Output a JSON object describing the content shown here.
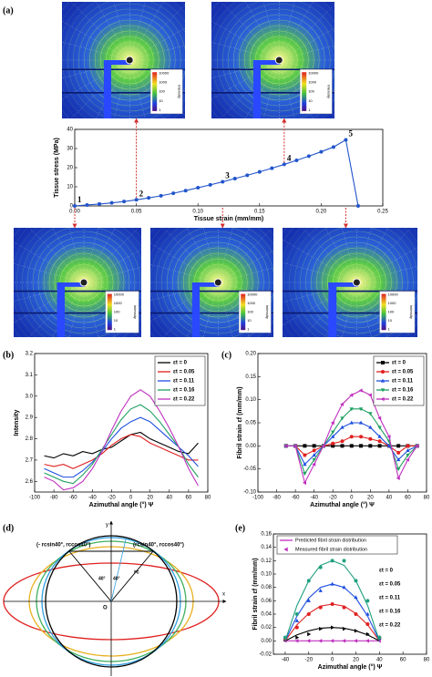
{
  "chart_data": [
    {
      "type": "line",
      "panel_label": "(a)",
      "xlabel": "Tissue strain (mm/mm)",
      "ylabel": "Tissue stress (MPa)",
      "x": [
        0,
        0.01,
        0.02,
        0.03,
        0.04,
        0.05,
        0.06,
        0.07,
        0.08,
        0.09,
        0.1,
        0.11,
        0.12,
        0.13,
        0.14,
        0.15,
        0.16,
        0.17,
        0.18,
        0.19,
        0.2,
        0.21,
        0.22,
        0.23
      ],
      "series": [
        {
          "color": "#2255cc",
          "marker": "circle",
          "values": [
            0,
            0.5,
            1,
            1.6,
            2.3,
            3.2,
            4.2,
            5.3,
            6.6,
            8,
            9.5,
            11,
            12.6,
            14.3,
            16,
            17.8,
            19.7,
            21.7,
            23.8,
            26,
            28.3,
            30.8,
            34.5,
            0
          ]
        }
      ],
      "xlim": [
        0,
        0.25
      ],
      "xticks": [
        {
          "value": 0,
          "label": "0.00"
        },
        {
          "value": 0.05,
          "label": "0.05"
        },
        {
          "value": 0.1,
          "label": "0.10"
        },
        {
          "value": 0.15,
          "label": "0.15"
        },
        {
          "value": 0.2,
          "label": "0.20"
        },
        {
          "value": 0.25,
          "label": "0.25"
        }
      ],
      "ylim": [
        0,
        40
      ],
      "yticks": [
        0,
        10,
        20,
        30,
        40
      ],
      "annotations": [
        {
          "text": "1",
          "x": 0,
          "color": "#1a237e"
        },
        {
          "text": "2",
          "x": 0.05,
          "color": "#d32f2f"
        },
        {
          "text": "3",
          "x": 0.12,
          "color": "#1e5fd6"
        },
        {
          "text": "4",
          "x": 0.17,
          "color": "#2e9e5a"
        },
        {
          "text": "5",
          "x": 0.22,
          "color": "#c238c2"
        }
      ]
    },
    {
      "type": "line",
      "panel_label": "(b)",
      "xlabel": "Azimuthal angle (°) Ψ",
      "ylabel": "Intensity",
      "x": [
        -90,
        -80,
        -70,
        -60,
        -50,
        -40,
        -30,
        -20,
        -10,
        0,
        10,
        20,
        30,
        40,
        50,
        60,
        70
      ],
      "series": [
        {
          "name": "εt = 0",
          "color": "#000000",
          "values": [
            2.72,
            2.71,
            2.73,
            2.72,
            2.74,
            2.73,
            2.75,
            2.76,
            2.79,
            2.82,
            2.83,
            2.8,
            2.78,
            2.76,
            2.74,
            2.73,
            2.78
          ]
        },
        {
          "name": "εt = 0.05",
          "color": "#e02020",
          "values": [
            2.68,
            2.67,
            2.68,
            2.66,
            2.68,
            2.7,
            2.73,
            2.77,
            2.8,
            2.82,
            2.81,
            2.78,
            2.76,
            2.74,
            2.72,
            2.7,
            2.7
          ]
        },
        {
          "name": "εt = 0.11",
          "color": "#1f4fe0",
          "values": [
            2.66,
            2.64,
            2.62,
            2.62,
            2.65,
            2.69,
            2.74,
            2.8,
            2.85,
            2.88,
            2.9,
            2.88,
            2.84,
            2.8,
            2.76,
            2.72,
            2.67
          ]
        },
        {
          "name": "εt = 0.16",
          "color": "#1fa060",
          "values": [
            2.64,
            2.62,
            2.6,
            2.59,
            2.63,
            2.68,
            2.75,
            2.82,
            2.89,
            2.94,
            2.96,
            2.93,
            2.88,
            2.82,
            2.76,
            2.68,
            2.62
          ]
        },
        {
          "name": "εt = 0.22",
          "color": "#c030c0",
          "values": [
            2.62,
            2.6,
            2.56,
            2.57,
            2.6,
            2.66,
            2.74,
            2.84,
            2.93,
            3,
            3.03,
            3,
            2.93,
            2.85,
            2.76,
            2.66,
            2.58
          ]
        }
      ],
      "xlim": [
        -100,
        80
      ],
      "xticks": [
        -100,
        -80,
        -60,
        -40,
        -20,
        0,
        20,
        40,
        60,
        80
      ],
      "ylim": [
        2.55,
        3.2
      ],
      "yticks": [
        2.6,
        2.7,
        2.8,
        2.9,
        {
          "value": 3,
          "label": "3.0"
        },
        3.1,
        3.2
      ]
    },
    {
      "type": "line",
      "panel_label": "(c)",
      "xlabel": "Azimuthal angle (°) Ψ",
      "ylabel": "Fibril strain εf (mm/mm)",
      "x": [
        -70,
        -60,
        -50,
        -40,
        -30,
        -20,
        -10,
        0,
        10,
        20,
        30,
        40,
        50,
        60,
        70
      ],
      "series": [
        {
          "name": "εt = 0",
          "color": "#000000",
          "marker": "square",
          "values": [
            0,
            0,
            0,
            0,
            0,
            0,
            0,
            0,
            0,
            0,
            0,
            0,
            0,
            0,
            0
          ]
        },
        {
          "name": "εt = 0.05",
          "color": "#e02020",
          "marker": "circle",
          "values": [
            0,
            0,
            -0.02,
            -0.01,
            0,
            0.005,
            0.01,
            0.02,
            0.02,
            0.015,
            0.01,
            0,
            -0.015,
            0,
            0
          ]
        },
        {
          "name": "εt = 0.11",
          "color": "#1f4fe0",
          "marker": "triangle-up",
          "values": [
            0,
            0,
            -0.04,
            -0.02,
            0,
            0.02,
            0.04,
            0.05,
            0.05,
            0.04,
            0.02,
            0,
            -0.03,
            -0.01,
            0
          ]
        },
        {
          "name": "εt = 0.16",
          "color": "#1fa060",
          "marker": "triangle-down",
          "values": [
            0,
            0,
            -0.06,
            -0.03,
            0,
            0.03,
            0.06,
            0.08,
            0.08,
            0.07,
            0.04,
            0.01,
            -0.05,
            -0.02,
            0
          ]
        },
        {
          "name": "εt = 0.22",
          "color": "#c030c0",
          "marker": "triangle-left",
          "values": [
            0,
            0,
            -0.08,
            -0.04,
            0,
            0.05,
            0.09,
            0.11,
            0.12,
            0.11,
            0.06,
            0.02,
            -0.07,
            -0.03,
            0
          ]
        }
      ],
      "xlim": [
        -100,
        80
      ],
      "xticks": [
        -100,
        -80,
        -60,
        -40,
        -20,
        0,
        20,
        40,
        60,
        80
      ],
      "ylim": [
        -0.1,
        0.2
      ],
      "yticks": [
        {
          "value": -0.1,
          "label": "-0.10"
        },
        {
          "value": -0.05,
          "label": "-0.05"
        },
        {
          "value": 0,
          "label": "0.00"
        },
        {
          "value": 0.05,
          "label": "0.05"
        },
        {
          "value": 0.1,
          "label": "0.10"
        },
        {
          "value": 0.15,
          "label": "0.15"
        },
        {
          "value": 0.2,
          "label": "0.20"
        }
      ]
    },
    {
      "type": "scatter",
      "panel_label": "(e)",
      "xlabel": "Azimuthal angle (°) Ψ",
      "ylabel": "Fibril strain εf (mm/mm)",
      "legend_entries": [
        {
          "label": "Predicted fibril strain distribution",
          "color": "#c030c0"
        },
        {
          "label": "Measured fibril strain distribution",
          "color": "#c030c0"
        }
      ],
      "x": [
        -40,
        -30,
        -20,
        -10,
        0,
        10,
        20,
        30,
        40
      ],
      "series": [
        {
          "name": "εt = 0",
          "color": "#c030c0",
          "marker": "triangle-left",
          "values": [
            0,
            0,
            0,
            0,
            0,
            0,
            0,
            0,
            0
          ],
          "fit": [
            0,
            0,
            0,
            0,
            0,
            0,
            0,
            0,
            0
          ]
        },
        {
          "name": "εt = 0.05",
          "color": "#000000",
          "marker": "triangle-right",
          "values": [
            0.002,
            0.005,
            0.01,
            0.018,
            0.02,
            0.018,
            0.015,
            0.01,
            0.003
          ],
          "fit": [
            0,
            0.009,
            0.015,
            0.019,
            0.02,
            0.019,
            0.015,
            0.009,
            0
          ]
        },
        {
          "name": "εt = 0.11",
          "color": "#e02020",
          "marker": "circle",
          "values": [
            0.003,
            0.02,
            0.04,
            0.05,
            0.055,
            0.05,
            0.04,
            0.025,
            0.005
          ],
          "fit": [
            0,
            0.024,
            0.041,
            0.052,
            0.055,
            0.052,
            0.041,
            0.024,
            0
          ]
        },
        {
          "name": "εt = 0.16",
          "color": "#1f4fe0",
          "marker": "triangle-up",
          "values": [
            0.005,
            0.03,
            0.06,
            0.075,
            0.085,
            0.08,
            0.065,
            0.04,
            0.005
          ],
          "fit": [
            0,
            0.037,
            0.064,
            0.08,
            0.085,
            0.08,
            0.064,
            0.037,
            0
          ]
        },
        {
          "name": "εt = 0.22",
          "color": "#20a080",
          "marker": "circle",
          "values": [
            0.005,
            0.04,
            0.09,
            0.11,
            0.12,
            0.12,
            0.09,
            0.06,
            0.005
          ],
          "fit": [
            0,
            0.053,
            0.09,
            0.113,
            0.12,
            0.113,
            0.09,
            0.053,
            0
          ]
        }
      ],
      "xlim": [
        -50,
        80
      ],
      "xticks": [
        -40,
        -20,
        0,
        20,
        40,
        60,
        80
      ],
      "ylim": [
        -0.02,
        0.16
      ],
      "yticks": [
        {
          "value": -0.02,
          "label": "-0.02"
        },
        {
          "value": 0,
          "label": "0.00"
        },
        {
          "value": 0.02,
          "label": "0.02"
        },
        {
          "value": 0.04,
          "label": "0.04"
        },
        {
          "value": 0.06,
          "label": "0.06"
        },
        {
          "value": 0.08,
          "label": "0.08"
        },
        {
          "value": 0.1,
          "label": "0.10"
        },
        {
          "value": 0.12,
          "label": "0.12"
        },
        {
          "value": 0.14,
          "label": "0.14"
        },
        {
          "value": 0.16,
          "label": "0.16"
        }
      ]
    }
  ],
  "diffraction_colorbar": {
    "ticks": [
      "10000",
      "1000",
      "100",
      "10",
      "1"
    ],
    "label": "Intensity"
  },
  "diagram": {
    "panel_label": "(d)",
    "left_point": "(- rcsin40°, rccos40°)",
    "right_point": "(rcsin40°, rccos40°)",
    "y_axis": "y",
    "x_axis": "x",
    "origin": "O",
    "angle_left": "40°",
    "angle_right": "40°",
    "radius": "rc"
  }
}
